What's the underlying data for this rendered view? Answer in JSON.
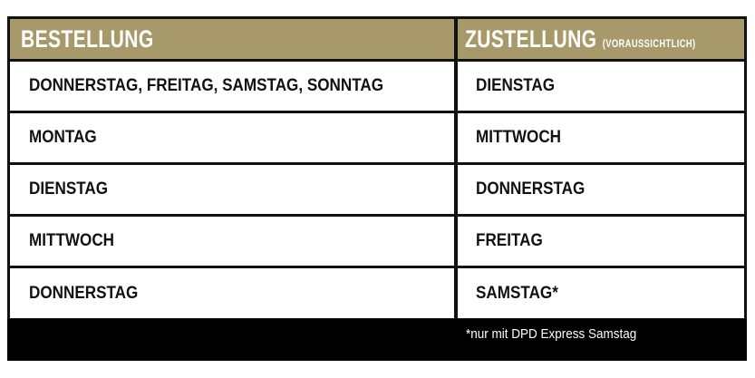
{
  "header": {
    "col1": "BESTELLUNG",
    "col2": "ZUSTELLUNG",
    "col2_sub": "(VORAUSSICHTLICH)"
  },
  "rows": [
    {
      "order": "DONNERSTAG, FREITAG, SAMSTAG, SONNTAG",
      "delivery": "DIENSTAG"
    },
    {
      "order": "MONTAG",
      "delivery": "MITTWOCH"
    },
    {
      "order": "DIENSTAG",
      "delivery": "DONNERSTAG"
    },
    {
      "order": "MITTWOCH",
      "delivery": "FREITAG"
    },
    {
      "order": "DONNERSTAG",
      "delivery": "SAMSTAG*"
    }
  ],
  "footnote": "*nur mit DPD Express Samstag",
  "colors": {
    "header_bg": "#a8996a",
    "border": "#111111"
  }
}
